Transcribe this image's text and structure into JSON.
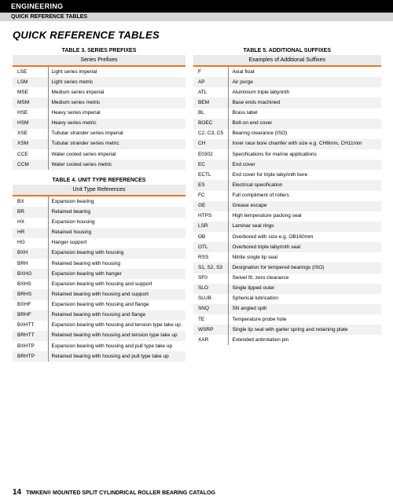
{
  "header": {
    "section": "ENGINEERING",
    "subsection": "QUICK REFERENCE TABLES"
  },
  "title": "QUICK REFERENCE TABLES",
  "table3": {
    "title": "TABLE 3. SERIES PREFIXES",
    "header": "Series Prefixes",
    "rows": [
      {
        "c": "LSE",
        "d": "Light series imperial"
      },
      {
        "c": "LSM",
        "d": "Light series metric"
      },
      {
        "c": "MSE",
        "d": "Medium series imperial"
      },
      {
        "c": "MSM",
        "d": "Medium series metric"
      },
      {
        "c": "HSE",
        "d": "Heavy series imperial"
      },
      {
        "c": "HSM",
        "d": "Heavy series metric"
      },
      {
        "c": "XSE",
        "d": "Tubular strander series imperial"
      },
      {
        "c": "XSM",
        "d": "Tubular strander series metric"
      },
      {
        "c": "CCE",
        "d": "Water cooled series imperial"
      },
      {
        "c": "CCM",
        "d": "Water cooled series metric"
      }
    ]
  },
  "table4": {
    "title": "TABLE 4. UNIT TYPE REFERENCES",
    "header": "Unit Type References",
    "rows": [
      {
        "c": "BX",
        "d": "Expansion bearing"
      },
      {
        "c": "BR",
        "d": "Retained bearing"
      },
      {
        "c": "HX",
        "d": "Expansion housing"
      },
      {
        "c": "HR",
        "d": "Retained housing"
      },
      {
        "c": "HG",
        "d": "Hanger support"
      },
      {
        "c": "BXH",
        "d": "Expansion bearing with housing"
      },
      {
        "c": "BRH",
        "d": "Retained bearing with housing"
      },
      {
        "c": "BXHG",
        "d": "Expansion bearing with hanger"
      },
      {
        "c": "BXHS",
        "d": "Expansion bearing with housing and support"
      },
      {
        "c": "BRHS",
        "d": "Retained bearing with housing and support"
      },
      {
        "c": "BXHF",
        "d": "Expansion bearing with housing and flange"
      },
      {
        "c": "BRHF",
        "d": "Retained bearing with housing and flange"
      },
      {
        "c": "BXHTT",
        "d": "Expansion bearing with housing and tension type take up"
      },
      {
        "c": "BRHTT",
        "d": "Retained bearing with housing and tension type take up"
      },
      {
        "c": "BXHTP",
        "d": "Expansion bearing with housing and pull type take up"
      },
      {
        "c": "BRHTP",
        "d": "Retained bearing with housing and pull type take up"
      }
    ]
  },
  "table5": {
    "title": "TABLE 5. ADDITIONAL SUFFIXES",
    "header": "Examples of Additional Suffixes",
    "rows": [
      {
        "c": "F",
        "d": "Axial float"
      },
      {
        "c": "AP",
        "d": "Air purge"
      },
      {
        "c": "ATL",
        "d": "Aluminium triple labyrinth"
      },
      {
        "c": "BEM",
        "d": "Base ends machined"
      },
      {
        "c": "BL",
        "d": "Brass label"
      },
      {
        "c": "BOEC",
        "d": "Bolt-on end cover"
      },
      {
        "c": "C2, C3, C5",
        "d": "Bearing clearance (ISO)"
      },
      {
        "c": "CH",
        "d": "Inner race bore chamfer with size e.g. CH8mm, CH11mm"
      },
      {
        "c": "E0302",
        "d": "Specifications for marine applications"
      },
      {
        "c": "EC",
        "d": "End cover"
      },
      {
        "c": "ECTL",
        "d": "End cover for triple labyrinth bore"
      },
      {
        "c": "ES",
        "d": "Electrical specification"
      },
      {
        "c": "FC",
        "d": "Full compliment of rollers"
      },
      {
        "c": "GE",
        "d": "Grease escape"
      },
      {
        "c": "HTPS",
        "d": "High temperature packing seal"
      },
      {
        "c": "LSR",
        "d": "Laminar seal rings"
      },
      {
        "c": "OB",
        "d": "Overbored with size e.g. OB160mm"
      },
      {
        "c": "OTL",
        "d": "Overbored triple labyrinth seal"
      },
      {
        "c": "RSS",
        "d": "Nitrile single lip seal"
      },
      {
        "c": "S1, S2, S3",
        "d": "Designation for tempered bearings (ISO)"
      },
      {
        "c": "SF0",
        "d": "Swivel fit, zero clearance"
      },
      {
        "c": "SLO",
        "d": "Single lipped outer"
      },
      {
        "c": "SLUB",
        "d": "Spherical lubrication"
      },
      {
        "c": "SNQ",
        "d": "SN angled split"
      },
      {
        "c": "TE",
        "d": "Temperature probe hole"
      },
      {
        "c": "WSRP",
        "d": "Single lip seal with garter spring and retaining plate"
      },
      {
        "c": "XAR",
        "d": "Extended antirotation pin"
      }
    ]
  },
  "footer": {
    "page": "14",
    "text": "TIMKEN® MOUNTED SPLIT CYLINDRICAL ROLLER BEARING CATALOG"
  }
}
